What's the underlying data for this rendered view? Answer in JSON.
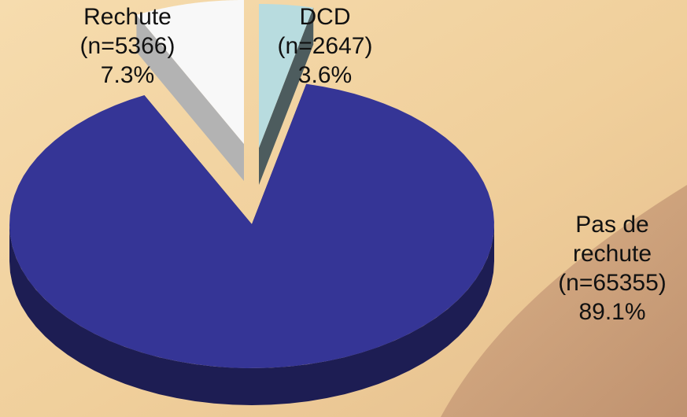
{
  "chart_data": {
    "type": "pie",
    "slices": [
      {
        "name": "Pas de rechute",
        "n": 65355,
        "percent": 89.1,
        "color": "#353596",
        "name_lines": [
          "Pas de",
          "rechute"
        ],
        "count_label": "(n=65355)",
        "percent_label": "89.1%"
      },
      {
        "name": "Rechute",
        "n": 5366,
        "percent": 7.3,
        "color": "#f8f8f8",
        "name_lines": [
          "Rechute"
        ],
        "count_label": "(n=5366)",
        "percent_label": "7.3%"
      },
      {
        "name": "DCD",
        "n": 2647,
        "percent": 3.6,
        "color": "#b8dcdf",
        "name_lines": [
          "DCD"
        ],
        "count_label": "(n=2647)",
        "percent_label": "3.6%"
      }
    ],
    "style": "3d-exploded",
    "legend": "none"
  }
}
